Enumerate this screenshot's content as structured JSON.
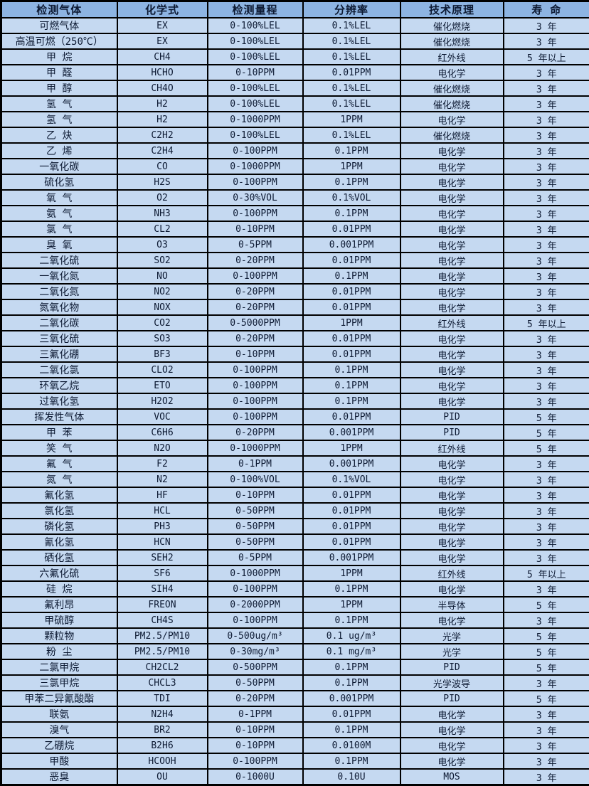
{
  "table": {
    "headers": [
      "检测气体",
      "化学式",
      "检测量程",
      "分辨率",
      "技术原理",
      "寿 命"
    ],
    "rows": [
      [
        "可燃气体",
        "EX",
        "0-100%LEL",
        "0.1%LEL",
        "催化燃烧",
        "3 年"
      ],
      [
        "高温可燃（250℃）",
        "EX",
        "0-100%LEL",
        "0.1%LEL",
        "催化燃烧",
        "3 年"
      ],
      [
        "甲 烷",
        "CH4",
        "0-100%LEL",
        "0.1%LEL",
        "红外线",
        "5 年以上"
      ],
      [
        "甲 醛",
        "HCHO",
        "0-10PPM",
        "0.01PPM",
        "电化学",
        "3 年"
      ],
      [
        "甲 醇",
        "CH4O",
        "0-100%LEL",
        "0.1%LEL",
        "催化燃烧",
        "3 年"
      ],
      [
        "氢 气",
        "H2",
        "0-100%LEL",
        "0.1%LEL",
        "催化燃烧",
        "3 年"
      ],
      [
        "氢 气",
        "H2",
        "0-1000PPM",
        "1PPM",
        "电化学",
        "3 年"
      ],
      [
        "乙 炔",
        "C2H2",
        "0-100%LEL",
        "0.1%LEL",
        "催化燃烧",
        "3 年"
      ],
      [
        "乙 烯",
        "C2H4",
        "0-100PPM",
        "0.1PPM",
        "电化学",
        "3 年"
      ],
      [
        "一氧化碳",
        "CO",
        "0-1000PPM",
        "1PPM",
        "电化学",
        "3 年"
      ],
      [
        "硫化氢",
        "H2S",
        "0-100PPM",
        "0.1PPM",
        "电化学",
        "3 年"
      ],
      [
        "氧 气",
        "O2",
        "0-30%VOL",
        "0.1%VOL",
        "电化学",
        "3 年"
      ],
      [
        "氨 气",
        "NH3",
        "0-100PPM",
        "0.1PPM",
        "电化学",
        "3 年"
      ],
      [
        "氯 气",
        "CL2",
        "0-10PPM",
        "0.01PPM",
        "电化学",
        "3 年"
      ],
      [
        "臭 氧",
        "O3",
        "0-5PPM",
        "0.001PPM",
        "电化学",
        "3 年"
      ],
      [
        "二氧化硫",
        "SO2",
        "0-20PPM",
        "0.01PPM",
        "电化学",
        "3 年"
      ],
      [
        "一氧化氮",
        "NO",
        "0-100PPM",
        "0.1PPM",
        "电化学",
        "3 年"
      ],
      [
        "二氧化氮",
        "NO2",
        "0-20PPM",
        "0.01PPM",
        "电化学",
        "3 年"
      ],
      [
        "氮氧化物",
        "NOX",
        "0-20PPM",
        "0.01PPM",
        "电化学",
        "3 年"
      ],
      [
        "二氧化碳",
        "CO2",
        "0-5000PPM",
        "1PPM",
        "红外线",
        "5 年以上"
      ],
      [
        "三氧化硫",
        "SO3",
        "0-20PPM",
        "0.01PPM",
        "电化学",
        "3 年"
      ],
      [
        "三氟化硼",
        "BF3",
        "0-10PPM",
        "0.01PPM",
        "电化学",
        "3 年"
      ],
      [
        "二氧化氯",
        "CLO2",
        "0-100PPM",
        "0.1PPM",
        "电化学",
        "3 年"
      ],
      [
        "环氧乙烷",
        "ETO",
        "0-100PPM",
        "0.1PPM",
        "电化学",
        "3 年"
      ],
      [
        "过氧化氢",
        "H2O2",
        "0-100PPM",
        "0.1PPM",
        "电化学",
        "3 年"
      ],
      [
        "挥发性气体",
        "VOC",
        "0-100PPM",
        "0.01PPM",
        "PID",
        "5 年"
      ],
      [
        "甲 苯",
        "C6H6",
        "0-20PPM",
        "0.001PPM",
        "PID",
        "5 年"
      ],
      [
        "笑 气",
        "N2O",
        "0-1000PPM",
        "1PPM",
        "红外线",
        "5 年"
      ],
      [
        "氟 气",
        "F2",
        "0-1PPM",
        "0.001PPM",
        "电化学",
        "3 年"
      ],
      [
        "氮 气",
        "N2",
        "0-100%VOL",
        "0.1%VOL",
        "电化学",
        "3 年"
      ],
      [
        "氟化氢",
        "HF",
        "0-10PPM",
        "0.01PPM",
        "电化学",
        "3 年"
      ],
      [
        "氯化氢",
        "HCL",
        "0-50PPM",
        "0.01PPM",
        "电化学",
        "3 年"
      ],
      [
        "磷化氢",
        "PH3",
        "0-50PPM",
        "0.01PPM",
        "电化学",
        "3 年"
      ],
      [
        "氰化氢",
        "HCN",
        "0-50PPM",
        "0.01PPM",
        "电化学",
        "3 年"
      ],
      [
        "硒化氢",
        "SEH2",
        "0-5PPM",
        "0.001PPM",
        "电化学",
        "3 年"
      ],
      [
        "六氟化硫",
        "SF6",
        "0-1000PPM",
        "1PPM",
        "红外线",
        "5 年以上"
      ],
      [
        "硅 烷",
        "SIH4",
        "0-100PPM",
        "0.1PPM",
        "电化学",
        "3 年"
      ],
      [
        "氟利昂",
        "FREON",
        "0-2000PPM",
        "1PPM",
        "半导体",
        "5 年"
      ],
      [
        "甲硫醇",
        "CH4S",
        "0-100PPM",
        "0.1PPM",
        "电化学",
        "3 年"
      ],
      [
        "颗粒物",
        "PM2.5/PM10",
        "0-500ug/m³",
        "0.1 ug/m³",
        "光学",
        "5 年"
      ],
      [
        "粉 尘",
        "PM2.5/PM10",
        "0-30mg/m³",
        "0.1 mg/m³",
        "光学",
        "5 年"
      ],
      [
        "二氯甲烷",
        "CH2CL2",
        "0-500PPM",
        "0.1PPM",
        "PID",
        "5 年"
      ],
      [
        "三氯甲烷",
        "CHCL3",
        "0-50PPM",
        "0.1PPM",
        "光学波导",
        "3 年"
      ],
      [
        "甲苯二异氰酸酯",
        "TDI",
        "0-20PPM",
        "0.001PPM",
        "PID",
        "5 年"
      ],
      [
        "联氨",
        "N2H4",
        "0-1PPM",
        "0.01PPM",
        "电化学",
        "3 年"
      ],
      [
        "溴气",
        "BR2",
        "0-10PPM",
        "0.1PPM",
        "电化学",
        "3 年"
      ],
      [
        "乙硼烷",
        "B2H6",
        "0-10PPM",
        "0.0100M",
        "电化学",
        "3 年"
      ],
      [
        "甲酸",
        "HCOOH",
        "0-100PPM",
        "0.1PPM",
        "电化学",
        "3 年"
      ],
      [
        "恶臭",
        "OU",
        "0-1000U",
        "0.10U",
        "MOS",
        "3 年"
      ]
    ]
  },
  "colors": {
    "header_bg": "#8DB4E2",
    "row_bg": "#C5D9F1",
    "border": "#000000",
    "text": "#0D1A33"
  }
}
